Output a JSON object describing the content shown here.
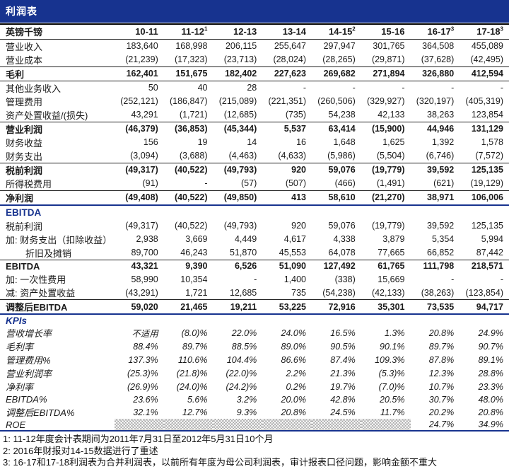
{
  "title": "利润表",
  "colors": {
    "navy": "#17338F",
    "title_text": "#FFFFFF"
  },
  "table": {
    "unit_label": "英镑千镑",
    "columns": [
      {
        "label": "10-11",
        "sup": ""
      },
      {
        "label": "11-12",
        "sup": "1"
      },
      {
        "label": "12-13",
        "sup": ""
      },
      {
        "label": "13-14",
        "sup": ""
      },
      {
        "label": "14-15",
        "sup": "2"
      },
      {
        "label": "15-16",
        "sup": ""
      },
      {
        "label": "16-17",
        "sup": "3"
      },
      {
        "label": "17-18",
        "sup": "3"
      }
    ],
    "rows": [
      {
        "label": "营业收入",
        "style": "plain",
        "values": [
          "183,640",
          "168,998",
          "206,115",
          "255,647",
          "297,947",
          "301,765",
          "364,508",
          "455,089"
        ]
      },
      {
        "label": "营业成本",
        "style": "plain",
        "values": [
          "(21,239)",
          "(17,323)",
          "(23,713)",
          "(28,024)",
          "(28,265)",
          "(29,871)",
          "(37,628)",
          "(42,495)"
        ]
      },
      {
        "label": "毛利",
        "style": "gross",
        "values": [
          "162,401",
          "151,675",
          "182,402",
          "227,623",
          "269,682",
          "271,894",
          "326,880",
          "412,594"
        ]
      },
      {
        "label": "其他业务收入",
        "style": "plain",
        "values": [
          "50",
          "40",
          "28",
          "-",
          "-",
          "-",
          "-",
          "-"
        ]
      },
      {
        "label": "管理费用",
        "style": "plain",
        "values": [
          "(252,121)",
          "(186,847)",
          "(215,089)",
          "(221,351)",
          "(260,506)",
          "(329,927)",
          "(320,197)",
          "(405,319)"
        ]
      },
      {
        "label": "资产处置收益/(损失)",
        "style": "plain",
        "values": [
          "43,291",
          "(1,721)",
          "(12,685)",
          "(735)",
          "54,238",
          "42,133",
          "38,263",
          "123,854"
        ]
      },
      {
        "label": "营业利润",
        "style": "subtotal",
        "values": [
          "(46,379)",
          "(36,853)",
          "(45,344)",
          "5,537",
          "63,414",
          "(15,900)",
          "44,946",
          "131,129"
        ]
      },
      {
        "label": "财务收益",
        "style": "plain",
        "values": [
          "156",
          "19",
          "14",
          "16",
          "1,648",
          "1,625",
          "1,392",
          "1,578"
        ]
      },
      {
        "label": "财务支出",
        "style": "plain",
        "values": [
          "(3,094)",
          "(3,688)",
          "(4,463)",
          "(4,633)",
          "(5,986)",
          "(5,504)",
          "(6,746)",
          "(7,572)"
        ]
      },
      {
        "label": "税前利润",
        "style": "subtotal",
        "values": [
          "(49,317)",
          "(40,522)",
          "(49,793)",
          "920",
          "59,076",
          "(19,779)",
          "39,592",
          "125,135"
        ]
      },
      {
        "label": "所得税费用",
        "style": "plain",
        "values": [
          "(91)",
          "-",
          "(57)",
          "(507)",
          "(466)",
          "(1,491)",
          "(621)",
          "(19,129)"
        ]
      },
      {
        "label": "净利润",
        "style": "total",
        "values": [
          "(49,408)",
          "(40,522)",
          "(49,850)",
          "413",
          "58,610",
          "(21,270)",
          "38,971",
          "106,006"
        ]
      },
      {
        "label": "EBITDA",
        "style": "section"
      },
      {
        "label": "税前利润",
        "style": "plain",
        "values": [
          "(49,317)",
          "(40,522)",
          "(49,793)",
          "920",
          "59,076",
          "(19,779)",
          "39,592",
          "125,135"
        ]
      },
      {
        "label": "加: 财务支出（扣除收益）",
        "style": "plain",
        "values": [
          "2,938",
          "3,669",
          "4,449",
          "4,617",
          "4,338",
          "3,879",
          "5,354",
          "5,994"
        ]
      },
      {
        "label": "折旧及摊销",
        "style": "plain",
        "indent": true,
        "values": [
          "89,700",
          "46,243",
          "51,870",
          "45,553",
          "64,078",
          "77,665",
          "66,852",
          "87,442"
        ]
      },
      {
        "label": "EBITDA",
        "style": "subtotal",
        "values": [
          "43,321",
          "9,390",
          "6,526",
          "51,090",
          "127,492",
          "61,765",
          "111,798",
          "218,571"
        ]
      },
      {
        "label": "加: 一次性费用",
        "style": "plain",
        "values": [
          "58,990",
          "10,354",
          "-",
          "1,400",
          "(338)",
          "15,669",
          "-",
          "-"
        ]
      },
      {
        "label": "减: 资产处置收益",
        "style": "plain",
        "values": [
          "(43,291)",
          "1,721",
          "12,685",
          "735",
          "(54,238)",
          "(42,133)",
          "(38,263)",
          "(123,854)"
        ]
      },
      {
        "label": "调整后EBITDA",
        "style": "total",
        "values": [
          "59,020",
          "21,465",
          "19,211",
          "53,225",
          "72,916",
          "35,301",
          "73,535",
          "94,717"
        ]
      },
      {
        "label": "KPIs",
        "style": "section-kpi"
      },
      {
        "label": "营收增长率",
        "style": "kpi",
        "values": [
          "不适用",
          "(8.0)%",
          "22.0%",
          "24.0%",
          "16.5%",
          "1.3%",
          "20.8%",
          "24.9%"
        ]
      },
      {
        "label": "毛利率",
        "style": "kpi",
        "values": [
          "88.4%",
          "89.7%",
          "88.5%",
          "89.0%",
          "90.5%",
          "90.1%",
          "89.7%",
          "90.7%"
        ]
      },
      {
        "label": "管理费用%",
        "style": "kpi",
        "values": [
          "137.3%",
          "110.6%",
          "104.4%",
          "86.6%",
          "87.4%",
          "109.3%",
          "87.8%",
          "89.1%"
        ]
      },
      {
        "label": "营业利润率",
        "style": "kpi",
        "values": [
          "(25.3)%",
          "(21.8)%",
          "(22.0)%",
          "2.2%",
          "21.3%",
          "(5.3)%",
          "12.3%",
          "28.8%"
        ]
      },
      {
        "label": "净利率",
        "style": "kpi",
        "values": [
          "(26.9)%",
          "(24.0)%",
          "(24.2)%",
          "0.2%",
          "19.7%",
          "(7.0)%",
          "10.7%",
          "23.3%"
        ]
      },
      {
        "label": "EBITDA%",
        "style": "kpi",
        "values": [
          "23.6%",
          "5.6%",
          "3.2%",
          "20.0%",
          "42.8%",
          "20.5%",
          "30.7%",
          "48.0%"
        ]
      },
      {
        "label": "调整后EBITDA%",
        "style": "kpi",
        "values": [
          "32.1%",
          "12.7%",
          "9.3%",
          "20.8%",
          "24.5%",
          "11.7%",
          "20.2%",
          "20.8%"
        ]
      },
      {
        "label": "ROE",
        "style": "kpi-roe",
        "hatch_cols": [
          0,
          1,
          2,
          3,
          4,
          5
        ],
        "values": [
          "",
          "",
          "",
          "",
          "",
          "",
          "24.7%",
          "34.9%"
        ]
      }
    ]
  },
  "footnotes": [
    "1: 11-12年度会计表期间为2011年7月31日至2012年5月31日10个月",
    "2: 2016年财报对14-15数据进行了重述",
    "3: 16-17和17-18利润表为合并利润表，以前所有年度为母公司利润表，审计报表口径问题，影响金额不重大"
  ]
}
